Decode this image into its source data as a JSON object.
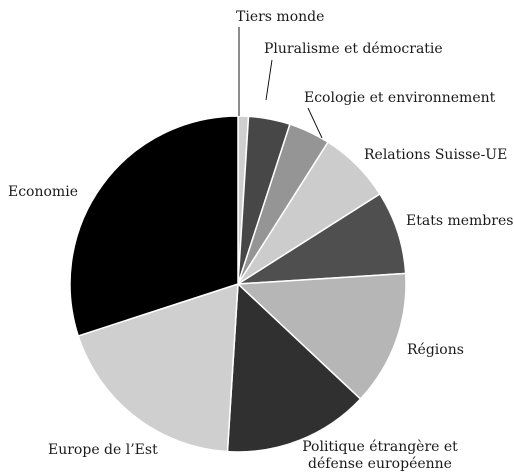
{
  "chart_data": {
    "type": "pie",
    "title": "",
    "start_angle_deg": 0,
    "direction": "clockwise",
    "slices": [
      {
        "label": "Tiers monde",
        "value": 1,
        "color": "#cfcfcf"
      },
      {
        "label": "Pluralisme et démocratie",
        "value": 4,
        "color": "#474747"
      },
      {
        "label": "Ecologie et environnement",
        "value": 4,
        "color": "#959595"
      },
      {
        "label": "Relations Suisse-UE",
        "value": 7,
        "color": "#cccccc"
      },
      {
        "label": "Etats membres",
        "value": 8,
        "color": "#4f4f4f"
      },
      {
        "label": "Régions",
        "value": 13,
        "color": "#b6b6b6"
      },
      {
        "label": "Politique étrangère et défense européenne",
        "value": 14,
        "color": "#303030"
      },
      {
        "label": "Europe de l’Est",
        "value": 19,
        "color": "#cfcfcf"
      },
      {
        "label": "Economie",
        "value": 30,
        "color": "#000000"
      }
    ],
    "labels": {
      "tiers": "Tiers monde",
      "pluralisme": "Pluralisme et démocratie",
      "ecologie": "Ecologie et environnement",
      "relations": "Relations Suisse-UE",
      "etats": "Etats membres",
      "regions": "Régions",
      "politique_line1": "Politique étrangère et",
      "politique_line2": "défense européenne",
      "europe": "Europe de l’Est",
      "economie": "Economie"
    }
  }
}
